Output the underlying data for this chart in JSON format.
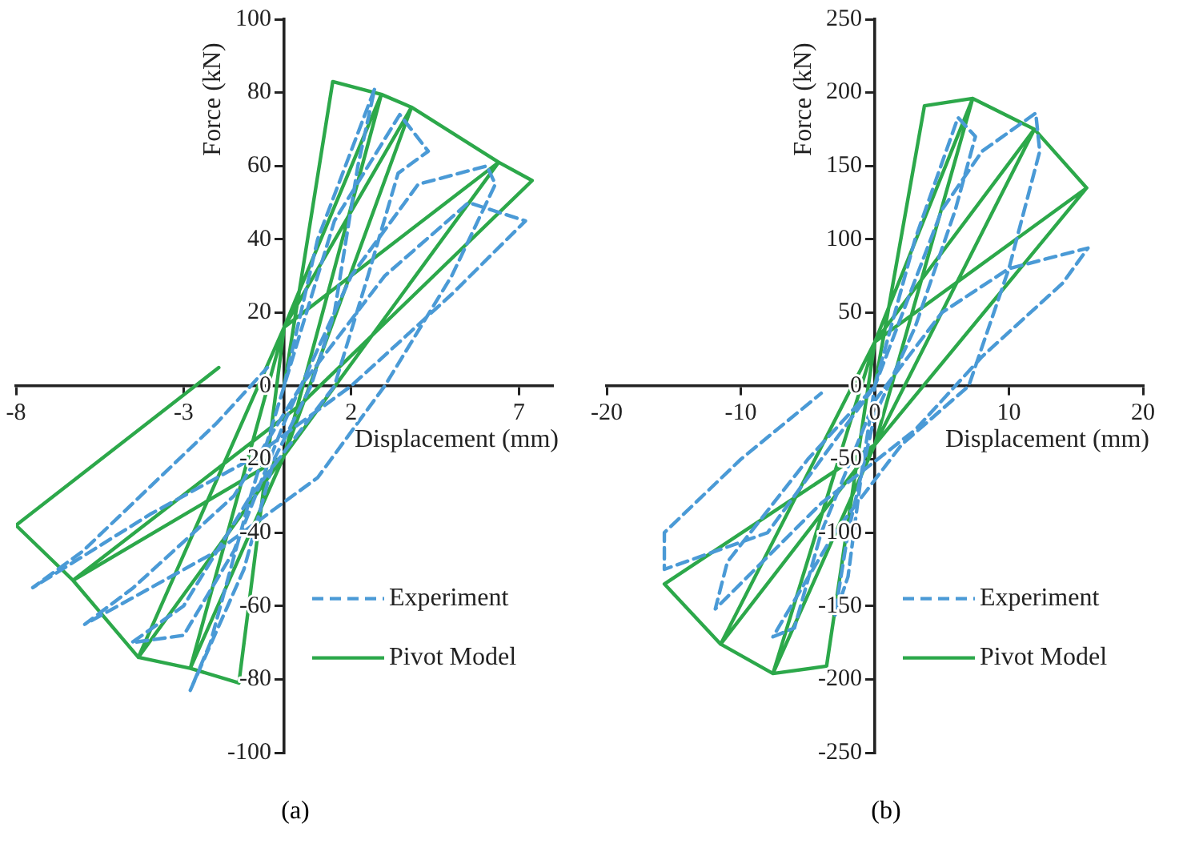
{
  "chart_data": [
    {
      "type": "line",
      "xlabel": "Displacement (mm)",
      "ylabel": "Force (kN)",
      "xlim": [
        -8,
        8
      ],
      "ylim": [
        -100,
        100
      ],
      "xticks": [
        -8,
        -3,
        2,
        7
      ],
      "yticks": [
        -100,
        -80,
        -60,
        -40,
        -20,
        0,
        20,
        40,
        60,
        80,
        100
      ],
      "grid": false,
      "legend": "bottom right",
      "marker": "none",
      "annotations": [
        "(a)"
      ],
      "series": [
        {
          "name": "Experiment",
          "color": "#4a9ad6",
          "line_style": "dashed",
          "x": [
            0,
            1,
            2.7,
            2.2,
            1.5,
            0.8,
            -0.3,
            -1.2,
            -2.8,
            -2.2,
            -1,
            0,
            1.5,
            3.45,
            4.3,
            3.4,
            2.5,
            1.5,
            -1,
            -3,
            -4.55,
            -3,
            -1.5,
            0,
            2,
            4,
            6.05,
            6.3,
            5,
            3,
            1,
            -2,
            -5.95,
            -4.5,
            -1.5,
            0.5,
            3,
            5.5,
            7.2,
            5,
            2,
            -1,
            -4,
            -7.5,
            -6,
            -2,
            -0.5
          ],
          "values": [
            0,
            40,
            81,
            60,
            20,
            0,
            -20,
            -50,
            -83,
            -70,
            -30,
            0,
            45,
            74,
            64,
            58,
            30,
            0,
            -30,
            -60,
            -70,
            -68,
            -45,
            -10,
            30,
            55,
            60,
            55,
            30,
            0,
            -25,
            -45,
            -65,
            -55,
            -30,
            0,
            30,
            50,
            45,
            25,
            0,
            -20,
            -35,
            -55,
            -45,
            -10,
            5
          ]
        },
        {
          "name": "Pivot Model",
          "color": "#2ca84a",
          "line_style": "solid",
          "x": [
            0,
            1.45,
            2.9,
            0,
            -1.35,
            -2.8,
            0,
            2.9,
            3.8,
            0,
            -2.8,
            -4.35,
            0,
            3.8,
            6.4,
            0,
            -4.35,
            -6.3,
            0,
            6.4,
            7.4,
            0.5,
            -6.3,
            -8,
            -1.95
          ],
          "values": [
            0,
            83,
            79.5,
            16,
            -81,
            -77,
            -19,
            79.5,
            76,
            16,
            -77,
            -74,
            -19,
            76,
            61,
            16,
            -74,
            -53,
            -19,
            61,
            56,
            -5,
            -53,
            -38,
            5
          ]
        }
      ]
    },
    {
      "type": "line",
      "xlabel": "Displacement (mm)",
      "ylabel": "Force (kN)",
      "xlim": [
        -20,
        20
      ],
      "ylim": [
        -250,
        250
      ],
      "xticks": [
        -20,
        -10,
        0,
        10,
        20
      ],
      "yticks": [
        -250,
        -200,
        -150,
        -100,
        -50,
        0,
        50,
        100,
        150,
        200,
        250
      ],
      "grid": false,
      "legend": "bottom right",
      "marker": "none",
      "annotations": [
        "(b)"
      ],
      "series": [
        {
          "name": "Experiment",
          "color": "#4a9ad6",
          "line_style": "dashed",
          "x": [
            0,
            3,
            6.2,
            7.5,
            6,
            3,
            0,
            -2,
            -3,
            -2,
            -1,
            0,
            5,
            8,
            12,
            12.3,
            10,
            7,
            2,
            -3,
            -7.6,
            -6,
            -4,
            0,
            5,
            10,
            15.9,
            14,
            8,
            3,
            -4,
            -11.9,
            -11,
            -5,
            0,
            -8,
            -15.7,
            -15.7,
            -10,
            -4
          ],
          "values": [
            0,
            100,
            183,
            170,
            120,
            40,
            -20,
            -100,
            -157,
            -130,
            -60,
            0,
            120,
            160,
            186,
            160,
            80,
            0,
            -40,
            -100,
            -171,
            -165,
            -100,
            -10,
            50,
            80,
            94,
            70,
            20,
            -30,
            -80,
            -152,
            -120,
            -50,
            0,
            -100,
            -125,
            -100,
            -50,
            -5
          ]
        },
        {
          "name": "Pivot Model",
          "color": "#2ca84a",
          "line_style": "solid",
          "x": [
            0,
            3.7,
            7.3,
            0,
            -3.6,
            -7.6,
            0,
            7.3,
            11.9,
            0,
            -7.6,
            -11.5,
            0,
            11.9,
            15.8,
            0,
            -11.5,
            -15.7,
            0,
            15.8
          ],
          "values": [
            0,
            191,
            196,
            30,
            -191,
            -196,
            -40,
            196,
            175,
            30,
            -196,
            -176,
            -40,
            175,
            135,
            30,
            -176,
            -135,
            -40,
            135
          ]
        }
      ]
    }
  ]
}
